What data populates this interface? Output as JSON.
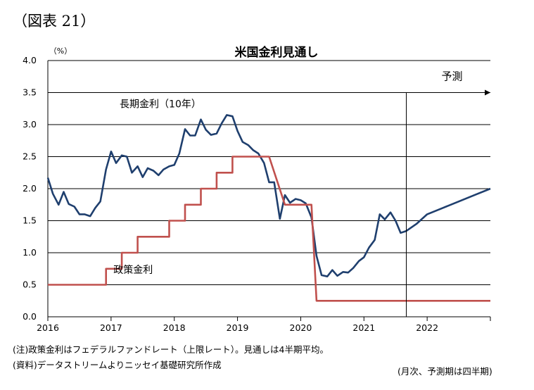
{
  "figure_label": "（図表 21）",
  "notes": {
    "note1": "(注)政策金利はフェデラルファンドレート（上限レート）。見通しは4半期平均。",
    "source": "(資料)データストリームよりニッセイ基礎研究所作成",
    "frequency": "(月次、予測期は四半期)"
  },
  "chart_data": {
    "type": "line",
    "title": "米国金利見通し",
    "ylabel": "（%）",
    "xlabel": "",
    "xlim": [
      2016.0,
      2023.0
    ],
    "ylim": [
      0,
      4.0
    ],
    "y_ticks": [
      "0.0",
      "0.5",
      "1.0",
      "1.5",
      "2.0",
      "2.5",
      "3.0",
      "3.5",
      "4.0"
    ],
    "x_ticks": [
      {
        "label": "2016",
        "x": 2016.0
      },
      {
        "label": "2017",
        "x": 2017.0
      },
      {
        "label": "2018",
        "x": 2018.0
      },
      {
        "label": "2019",
        "x": 2019.0
      },
      {
        "label": "2020",
        "x": 2020.0
      },
      {
        "label": "2021",
        "x": 2021.0
      },
      {
        "label": "2022",
        "x": 2022.0
      }
    ],
    "grid": true,
    "forecast": {
      "label": "予測",
      "start_x": 2021.67
    },
    "series": [
      {
        "name": "長期金利（10年）",
        "color": "#1f3f6e",
        "points": [
          [
            2016.0,
            2.17
          ],
          [
            2016.08,
            1.92
          ],
          [
            2016.17,
            1.75
          ],
          [
            2016.25,
            1.95
          ],
          [
            2016.33,
            1.76
          ],
          [
            2016.42,
            1.72
          ],
          [
            2016.5,
            1.6
          ],
          [
            2016.58,
            1.6
          ],
          [
            2016.67,
            1.57
          ],
          [
            2016.75,
            1.7
          ],
          [
            2016.83,
            1.8
          ],
          [
            2016.92,
            2.3
          ],
          [
            2017.0,
            2.58
          ],
          [
            2017.08,
            2.4
          ],
          [
            2017.17,
            2.52
          ],
          [
            2017.25,
            2.5
          ],
          [
            2017.33,
            2.25
          ],
          [
            2017.42,
            2.35
          ],
          [
            2017.5,
            2.18
          ],
          [
            2017.58,
            2.32
          ],
          [
            2017.67,
            2.28
          ],
          [
            2017.75,
            2.21
          ],
          [
            2017.83,
            2.3
          ],
          [
            2017.92,
            2.35
          ],
          [
            2018.0,
            2.37
          ],
          [
            2018.08,
            2.55
          ],
          [
            2018.17,
            2.93
          ],
          [
            2018.25,
            2.83
          ],
          [
            2018.33,
            2.83
          ],
          [
            2018.42,
            3.08
          ],
          [
            2018.5,
            2.92
          ],
          [
            2018.58,
            2.84
          ],
          [
            2018.67,
            2.86
          ],
          [
            2018.75,
            3.02
          ],
          [
            2018.83,
            3.15
          ],
          [
            2018.92,
            3.13
          ],
          [
            2019.0,
            2.9
          ],
          [
            2019.08,
            2.73
          ],
          [
            2019.17,
            2.68
          ],
          [
            2019.25,
            2.6
          ],
          [
            2019.33,
            2.55
          ],
          [
            2019.42,
            2.4
          ],
          [
            2019.5,
            2.1
          ],
          [
            2019.58,
            2.1
          ],
          [
            2019.67,
            1.53
          ],
          [
            2019.75,
            1.9
          ],
          [
            2019.83,
            1.78
          ],
          [
            2019.92,
            1.84
          ],
          [
            2020.0,
            1.82
          ],
          [
            2020.08,
            1.77
          ],
          [
            2020.17,
            1.55
          ],
          [
            2020.25,
            0.95
          ],
          [
            2020.33,
            0.65
          ],
          [
            2020.42,
            0.63
          ],
          [
            2020.5,
            0.73
          ],
          [
            2020.58,
            0.64
          ],
          [
            2020.67,
            0.7
          ],
          [
            2020.75,
            0.69
          ],
          [
            2020.83,
            0.76
          ],
          [
            2020.92,
            0.87
          ],
          [
            2021.0,
            0.93
          ],
          [
            2021.08,
            1.08
          ],
          [
            2021.17,
            1.2
          ],
          [
            2021.25,
            1.6
          ],
          [
            2021.33,
            1.52
          ],
          [
            2021.42,
            1.63
          ],
          [
            2021.5,
            1.5
          ],
          [
            2021.58,
            1.31
          ],
          [
            2021.67,
            1.34
          ],
          [
            2021.83,
            1.45
          ],
          [
            2022.0,
            1.6
          ],
          [
            2022.25,
            1.7
          ],
          [
            2022.5,
            1.8
          ],
          [
            2022.75,
            1.9
          ],
          [
            2023.0,
            2.0
          ]
        ],
        "label": {
          "text": "長期金利（10年）",
          "x": 2017.78,
          "y": 3.27
        }
      },
      {
        "name": "政策金利",
        "color": "#c0504d",
        "points": [
          [
            2016.0,
            0.5
          ],
          [
            2016.92,
            0.5
          ],
          [
            2016.92,
            0.75
          ],
          [
            2017.17,
            0.75
          ],
          [
            2017.17,
            1.0
          ],
          [
            2017.42,
            1.0
          ],
          [
            2017.42,
            1.25
          ],
          [
            2017.92,
            1.25
          ],
          [
            2017.92,
            1.5
          ],
          [
            2018.17,
            1.5
          ],
          [
            2018.17,
            1.75
          ],
          [
            2018.42,
            1.75
          ],
          [
            2018.42,
            2.0
          ],
          [
            2018.67,
            2.0
          ],
          [
            2018.67,
            2.25
          ],
          [
            2018.92,
            2.25
          ],
          [
            2018.92,
            2.5
          ],
          [
            2019.5,
            2.5
          ],
          [
            2019.75,
            1.75
          ],
          [
            2020.08,
            1.75
          ],
          [
            2020.17,
            1.75
          ],
          [
            2020.25,
            0.25
          ],
          [
            2023.0,
            0.25
          ]
        ],
        "label": {
          "text": "政策金利",
          "x": 2017.35,
          "y": 0.68
        }
      }
    ]
  }
}
